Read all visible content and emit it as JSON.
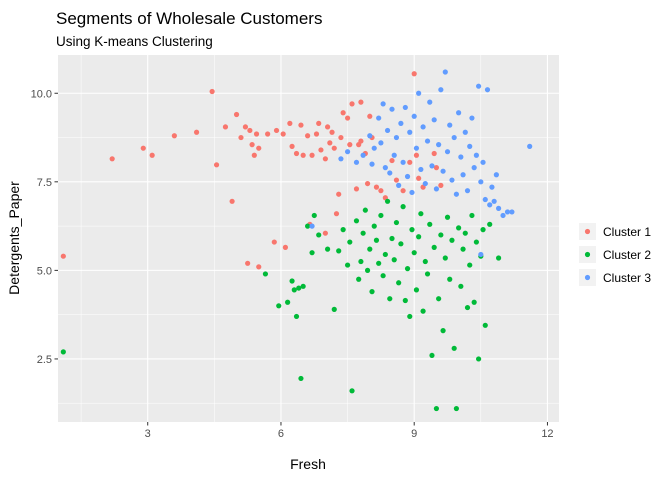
{
  "chart_data": {
    "type": "scatter",
    "title": "Segments of Wholesale Customers",
    "subtitle": "Using K-means Clustering",
    "xlabel": "Fresh",
    "ylabel": "Detergents_Paper",
    "xlim": [
      0.98,
      12.26
    ],
    "ylim": [
      0.72,
      11.08
    ],
    "x_ticks": [
      3,
      6,
      9,
      12
    ],
    "x_tick_labels": [
      "3",
      "6",
      "9",
      "12"
    ],
    "y_ticks": [
      2.5,
      5.0,
      7.5,
      10.0
    ],
    "y_tick_labels": [
      "2.5",
      "5.0",
      "7.5",
      "10.0"
    ],
    "grid": true,
    "legend_position": "right",
    "series": [
      {
        "name": "Cluster 1",
        "color": "#F8766D",
        "points": [
          [
            1.1,
            5.4
          ],
          [
            2.2,
            8.15
          ],
          [
            2.9,
            8.45
          ],
          [
            3.1,
            8.25
          ],
          [
            3.6,
            8.8
          ],
          [
            4.1,
            8.9
          ],
          [
            4.45,
            10.05
          ],
          [
            4.55,
            7.98
          ],
          [
            4.75,
            9.05
          ],
          [
            4.9,
            6.95
          ],
          [
            5.0,
            9.4
          ],
          [
            5.1,
            8.75
          ],
          [
            5.2,
            9.05
          ],
          [
            5.25,
            5.2
          ],
          [
            5.3,
            8.95
          ],
          [
            5.35,
            8.55
          ],
          [
            5.4,
            8.25
          ],
          [
            5.45,
            8.85
          ],
          [
            5.5,
            8.45
          ],
          [
            5.5,
            5.1
          ],
          [
            5.7,
            8.85
          ],
          [
            5.85,
            5.8
          ],
          [
            5.9,
            8.95
          ],
          [
            6.05,
            8.85
          ],
          [
            6.1,
            5.65
          ],
          [
            6.2,
            9.15
          ],
          [
            6.25,
            8.5
          ],
          [
            6.35,
            8.3
          ],
          [
            6.45,
            9.1
          ],
          [
            6.5,
            8.25
          ],
          [
            6.6,
            8.8
          ],
          [
            6.65,
            6.3
          ],
          [
            6.7,
            8.25
          ],
          [
            6.8,
            8.85
          ],
          [
            6.85,
            9.15
          ],
          [
            6.9,
            8.4
          ],
          [
            7.0,
            8.15
          ],
          [
            7.0,
            6.05
          ],
          [
            7.05,
            9.05
          ],
          [
            7.1,
            8.6
          ],
          [
            7.15,
            8.9
          ],
          [
            7.2,
            8.45
          ],
          [
            7.25,
            6.6
          ],
          [
            7.3,
            7.15
          ],
          [
            7.35,
            8.75
          ],
          [
            7.4,
            9.45
          ],
          [
            7.5,
            9.3
          ],
          [
            7.55,
            8.55
          ],
          [
            7.6,
            9.7
          ],
          [
            7.7,
            7.3
          ],
          [
            7.75,
            8.55
          ],
          [
            7.8,
            8.65
          ],
          [
            7.8,
            9.75
          ],
          [
            7.9,
            8.3
          ],
          [
            7.95,
            7.45
          ],
          [
            8.0,
            9.35
          ],
          [
            8.05,
            8.75
          ],
          [
            8.15,
            7.35
          ],
          [
            8.25,
            7.25
          ],
          [
            8.35,
            7.05
          ],
          [
            8.5,
            8.1
          ],
          [
            8.6,
            7.55
          ],
          [
            8.75,
            7.25
          ],
          [
            8.9,
            8.05
          ],
          [
            9.0,
            10.55
          ],
          [
            9.05,
            8.25
          ],
          [
            9.1,
            7.6
          ],
          [
            9.2,
            7.35
          ],
          [
            9.45,
            8.3
          ],
          [
            9.5,
            7.9
          ],
          [
            9.6,
            7.4
          ]
        ]
      },
      {
        "name": "Cluster 2",
        "color": "#00BA38",
        "points": [
          [
            1.1,
            2.7
          ],
          [
            5.65,
            4.9
          ],
          [
            5.95,
            4.0
          ],
          [
            6.15,
            4.1
          ],
          [
            6.25,
            4.7
          ],
          [
            6.3,
            4.45
          ],
          [
            6.35,
            3.7
          ],
          [
            6.4,
            4.5
          ],
          [
            6.45,
            1.95
          ],
          [
            6.5,
            4.55
          ],
          [
            6.6,
            6.25
          ],
          [
            6.7,
            5.5
          ],
          [
            6.75,
            6.55
          ],
          [
            6.85,
            6.0
          ],
          [
            7.05,
            5.6
          ],
          [
            7.2,
            3.9
          ],
          [
            7.3,
            5.55
          ],
          [
            7.4,
            6.15
          ],
          [
            7.5,
            5.15
          ],
          [
            7.55,
            5.8
          ],
          [
            7.6,
            1.6
          ],
          [
            7.7,
            6.4
          ],
          [
            7.75,
            4.75
          ],
          [
            7.8,
            5.25
          ],
          [
            7.85,
            6.05
          ],
          [
            7.9,
            6.7
          ],
          [
            7.95,
            5.0
          ],
          [
            8.0,
            5.6
          ],
          [
            8.05,
            4.4
          ],
          [
            8.1,
            6.25
          ],
          [
            8.15,
            5.85
          ],
          [
            8.2,
            5.2
          ],
          [
            8.25,
            6.55
          ],
          [
            8.3,
            4.85
          ],
          [
            8.35,
            5.45
          ],
          [
            8.4,
            6.95
          ],
          [
            8.45,
            4.2
          ],
          [
            8.5,
            5.9
          ],
          [
            8.55,
            5.3
          ],
          [
            8.6,
            6.35
          ],
          [
            8.65,
            4.65
          ],
          [
            8.7,
            5.75
          ],
          [
            8.75,
            6.8
          ],
          [
            8.8,
            4.15
          ],
          [
            8.85,
            5.05
          ],
          [
            8.9,
            3.7
          ],
          [
            8.95,
            6.15
          ],
          [
            9.0,
            5.5
          ],
          [
            9.05,
            4.45
          ],
          [
            9.1,
            5.95
          ],
          [
            9.15,
            6.6
          ],
          [
            9.2,
            3.85
          ],
          [
            9.25,
            5.25
          ],
          [
            9.3,
            4.9
          ],
          [
            9.35,
            6.3
          ],
          [
            9.4,
            2.6
          ],
          [
            9.45,
            5.65
          ],
          [
            9.5,
            1.1
          ],
          [
            9.55,
            4.2
          ],
          [
            9.6,
            6.0
          ],
          [
            9.65,
            3.3
          ],
          [
            9.7,
            5.35
          ],
          [
            9.75,
            6.5
          ],
          [
            9.8,
            4.75
          ],
          [
            9.85,
            5.85
          ],
          [
            9.9,
            2.8
          ],
          [
            9.95,
            1.1
          ],
          [
            10.0,
            6.2
          ],
          [
            10.05,
            4.55
          ],
          [
            10.1,
            5.6
          ],
          [
            10.15,
            6.05
          ],
          [
            10.2,
            3.95
          ],
          [
            10.25,
            5.15
          ],
          [
            10.3,
            6.55
          ],
          [
            10.35,
            4.1
          ],
          [
            10.4,
            5.8
          ],
          [
            10.45,
            2.5
          ],
          [
            10.5,
            5.4
          ],
          [
            10.55,
            6.15
          ],
          [
            10.6,
            3.45
          ],
          [
            10.7,
            6.3
          ],
          [
            10.9,
            5.35
          ]
        ]
      },
      {
        "name": "Cluster 3",
        "color": "#619CFF",
        "points": [
          [
            6.7,
            6.25
          ],
          [
            7.35,
            8.15
          ],
          [
            7.5,
            8.35
          ],
          [
            7.7,
            8.05
          ],
          [
            7.85,
            8.25
          ],
          [
            8.0,
            8.8
          ],
          [
            8.05,
            8.0
          ],
          [
            8.1,
            8.45
          ],
          [
            8.2,
            9.3
          ],
          [
            8.25,
            8.6
          ],
          [
            8.3,
            9.7
          ],
          [
            8.35,
            7.9
          ],
          [
            8.4,
            8.95
          ],
          [
            8.45,
            7.75
          ],
          [
            8.5,
            9.55
          ],
          [
            8.55,
            8.25
          ],
          [
            8.6,
            8.75
          ],
          [
            8.65,
            7.4
          ],
          [
            8.7,
            9.15
          ],
          [
            8.75,
            8.05
          ],
          [
            8.8,
            9.6
          ],
          [
            8.85,
            7.65
          ],
          [
            8.9,
            8.9
          ],
          [
            8.95,
            7.2
          ],
          [
            9.0,
            9.35
          ],
          [
            9.05,
            8.45
          ],
          [
            9.1,
            10.0
          ],
          [
            9.15,
            7.85
          ],
          [
            9.2,
            9.05
          ],
          [
            9.25,
            7.45
          ],
          [
            9.3,
            8.65
          ],
          [
            9.35,
            9.75
          ],
          [
            9.4,
            7.95
          ],
          [
            9.45,
            9.25
          ],
          [
            9.5,
            7.3
          ],
          [
            9.55,
            8.55
          ],
          [
            9.6,
            10.1
          ],
          [
            9.65,
            7.8
          ],
          [
            9.7,
            10.6
          ],
          [
            9.75,
            8.35
          ],
          [
            9.8,
            9.1
          ],
          [
            9.85,
            7.55
          ],
          [
            9.9,
            8.75
          ],
          [
            9.95,
            7.15
          ],
          [
            10.0,
            9.45
          ],
          [
            10.05,
            8.2
          ],
          [
            10.1,
            7.7
          ],
          [
            10.15,
            8.9
          ],
          [
            10.2,
            7.25
          ],
          [
            10.25,
            8.5
          ],
          [
            10.3,
            9.3
          ],
          [
            10.35,
            7.9
          ],
          [
            10.4,
            8.25
          ],
          [
            10.45,
            10.2
          ],
          [
            10.5,
            7.5
          ],
          [
            10.55,
            8.05
          ],
          [
            10.6,
            7.0
          ],
          [
            10.65,
            10.1
          ],
          [
            10.7,
            6.85
          ],
          [
            10.75,
            7.35
          ],
          [
            10.8,
            6.95
          ],
          [
            10.85,
            7.7
          ],
          [
            10.9,
            6.75
          ],
          [
            11.0,
            6.55
          ],
          [
            11.1,
            6.65
          ],
          [
            11.2,
            6.65
          ],
          [
            11.6,
            8.5
          ],
          [
            10.5,
            5.45
          ]
        ]
      }
    ]
  }
}
